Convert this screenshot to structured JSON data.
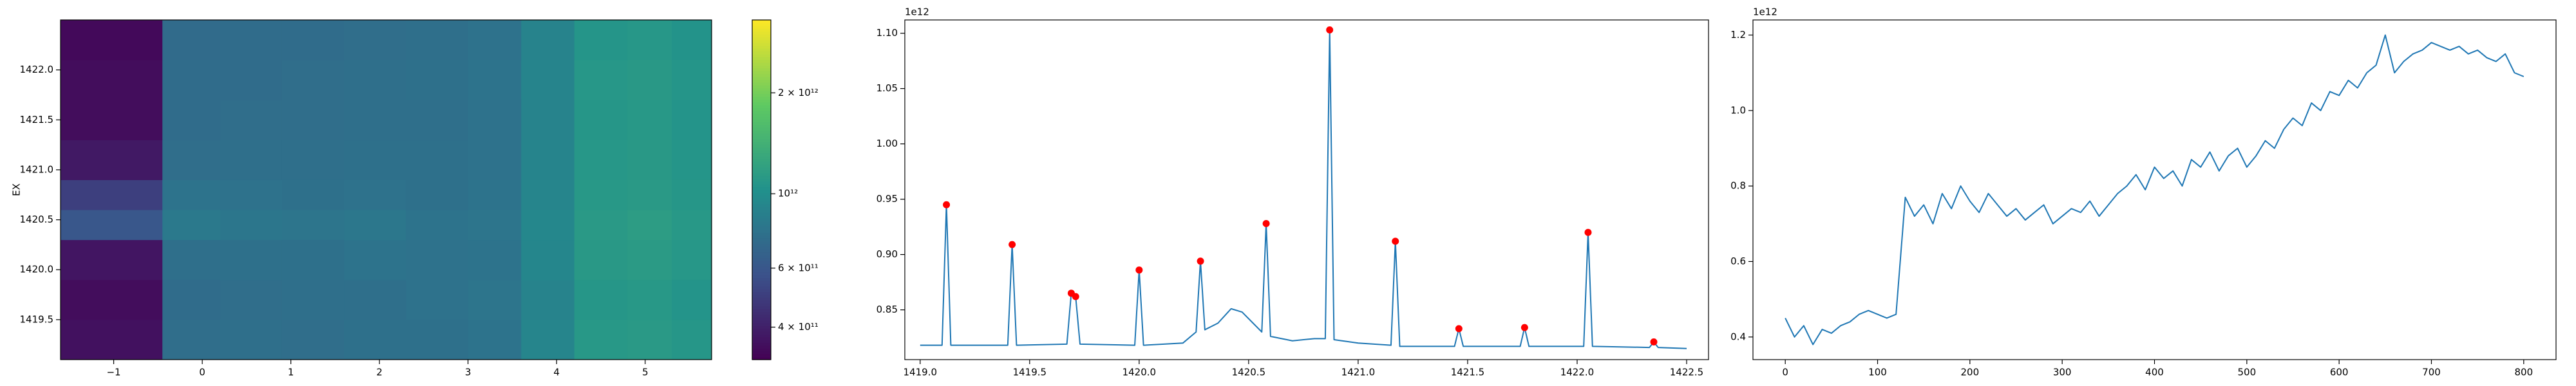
{
  "chart_data": [
    {
      "type": "heatmap",
      "y_label": "EX",
      "x_edges": [
        -1.6,
        -0.45,
        0.2,
        0.9,
        1.6,
        2.3,
        3.0,
        3.6,
        4.2,
        4.8,
        5.3,
        5.75
      ],
      "y_edges": [
        1419.1,
        1419.5,
        1419.9,
        1420.3,
        1420.6,
        1420.9,
        1421.3,
        1421.7,
        1422.1,
        1422.5
      ],
      "z": [
        [
          360000000000.0,
          740000000000.0,
          750000000000.0,
          740000000000.0,
          760000000000.0,
          760000000000.0,
          780000000000.0,
          920000000000.0,
          1100000000000.0,
          1120000000000.0,
          1080000000000.0
        ],
        [
          350000000000.0,
          730000000000.0,
          740000000000.0,
          750000000000.0,
          750000000000.0,
          770000000000.0,
          790000000000.0,
          900000000000.0,
          1080000000000.0,
          1100000000000.0,
          1060000000000.0
        ],
        [
          370000000000.0,
          750000000000.0,
          760000000000.0,
          760000000000.0,
          780000000000.0,
          770000000000.0,
          780000000000.0,
          930000000000.0,
          1110000000000.0,
          1130000000000.0,
          1090000000000.0
        ],
        [
          600000000000.0,
          820000000000.0,
          800000000000.0,
          790000000000.0,
          810000000000.0,
          780000000000.0,
          790000000000.0,
          940000000000.0,
          1120000000000.0,
          1150000000000.0,
          1100000000000.0
        ],
        [
          500000000000.0,
          780000000000.0,
          770000000000.0,
          760000000000.0,
          770000000000.0,
          760000000000.0,
          780000000000.0,
          920000000000.0,
          1100000000000.0,
          1120000000000.0,
          1080000000000.0
        ],
        [
          380000000000.0,
          740000000000.0,
          750000000000.0,
          750000000000.0,
          760000000000.0,
          760000000000.0,
          770000000000.0,
          910000000000.0,
          1090000000000.0,
          1110000000000.0,
          1070000000000.0
        ],
        [
          350000000000.0,
          730000000000.0,
          740000000000.0,
          740000000000.0,
          750000000000.0,
          750000000000.0,
          770000000000.0,
          900000000000.0,
          1080000000000.0,
          1100000000000.0,
          1060000000000.0
        ],
        [
          350000000000.0,
          730000000000.0,
          730000000000.0,
          740000000000.0,
          750000000000.0,
          760000000000.0,
          780000000000.0,
          910000000000.0,
          1090000000000.0,
          1110000000000.0,
          1070000000000.0
        ],
        [
          340000000000.0,
          720000000000.0,
          730000000000.0,
          730000000000.0,
          740000000000.0,
          750000000000.0,
          770000000000.0,
          900000000000.0,
          1070000000000.0,
          1090000000000.0,
          1050000000000.0
        ]
      ],
      "xlim": [
        -1.6,
        5.75
      ],
      "xticks": [
        {
          "value": -1,
          "label": "−1"
        },
        0,
        1,
        2,
        3,
        4,
        5
      ],
      "ylim": [
        1419.1,
        1422.5
      ],
      "yticks": [
        1419.5,
        {
          "value": 1420,
          "label": "1420.0"
        },
        1420.5,
        {
          "value": 1421,
          "label": "1421.0"
        },
        1421.5,
        {
          "value": 1422,
          "label": "1422.0"
        }
      ],
      "colorbar": {
        "log": true,
        "lim": [
          320000000000.0,
          3300000000000.0
        ],
        "ticks": [
          {
            "value": 400000000000.0,
            "label": "4 × 10¹¹"
          },
          {
            "value": 600000000000.0,
            "label": "6 × 10¹¹"
          },
          {
            "value": 1000000000000.0,
            "label": "10¹²"
          },
          {
            "value": 2000000000000.0,
            "label": "2 × 10¹²"
          }
        ]
      }
    },
    {
      "type": "line",
      "offset_label": "1e12",
      "x": [
        1419.0,
        1419.1,
        1419.12,
        1419.14,
        1419.4,
        1419.42,
        1419.44,
        1419.67,
        1419.69,
        1419.71,
        1419.73,
        1419.98,
        1420.0,
        1420.02,
        1420.2,
        1420.26,
        1420.28,
        1420.3,
        1420.36,
        1420.42,
        1420.47,
        1420.52,
        1420.56,
        1420.58,
        1420.6,
        1420.7,
        1420.8,
        1420.85,
        1420.87,
        1420.89,
        1421.0,
        1421.15,
        1421.17,
        1421.19,
        1421.44,
        1421.46,
        1421.48,
        1421.74,
        1421.76,
        1421.78,
        1422.03,
        1422.05,
        1422.07,
        1422.33,
        1422.35,
        1422.37,
        1422.5
      ],
      "series": [
        {
          "color": "#1f77b4",
          "values": [
            0.818,
            0.818,
            0.945,
            0.818,
            0.818,
            0.909,
            0.818,
            0.819,
            0.865,
            0.862,
            0.819,
            0.818,
            0.886,
            0.818,
            0.82,
            0.83,
            0.894,
            0.832,
            0.838,
            0.851,
            0.848,
            0.838,
            0.83,
            0.928,
            0.826,
            0.822,
            0.824,
            0.824,
            1.103,
            0.823,
            0.82,
            0.818,
            0.912,
            0.817,
            0.817,
            0.833,
            0.817,
            0.817,
            0.834,
            0.817,
            0.817,
            0.92,
            0.817,
            0.816,
            0.821,
            0.816,
            0.815
          ]
        }
      ],
      "peaks": {
        "color": "#ff0000",
        "x": [
          1419.12,
          1419.42,
          1419.69,
          1419.71,
          1420.0,
          1420.28,
          1420.58,
          1420.87,
          1421.17,
          1421.46,
          1421.76,
          1422.05,
          1422.35
        ],
        "values": [
          0.945,
          0.909,
          0.865,
          0.862,
          0.886,
          0.894,
          0.928,
          1.103,
          0.912,
          0.833,
          0.834,
          0.92,
          0.821
        ]
      },
      "xlim": [
        1418.93,
        1422.6
      ],
      "xticks": [
        {
          "value": 1419,
          "label": "1419.0"
        },
        1419.5,
        {
          "value": 1420,
          "label": "1420.0"
        },
        1420.5,
        {
          "value": 1421,
          "label": "1421.0"
        },
        1421.5,
        {
          "value": 1422,
          "label": "1422.0"
        },
        1422.5
      ],
      "ylim": [
        0.805,
        1.112
      ],
      "yticks": [
        0.85,
        {
          "value": 0.9,
          "label": "0.90"
        },
        0.95,
        {
          "value": 1,
          "label": "1.00"
        },
        1.05,
        {
          "value": 1.1,
          "label": "1.10"
        }
      ]
    },
    {
      "type": "line",
      "offset_label": "1e12",
      "x": [
        0,
        10,
        20,
        30,
        40,
        50,
        60,
        70,
        80,
        90,
        100,
        110,
        120,
        130,
        140,
        150,
        160,
        170,
        180,
        190,
        200,
        210,
        220,
        230,
        240,
        250,
        260,
        270,
        280,
        290,
        300,
        310,
        320,
        330,
        340,
        350,
        360,
        370,
        380,
        390,
        400,
        410,
        420,
        430,
        440,
        450,
        460,
        470,
        480,
        490,
        500,
        510,
        520,
        530,
        540,
        550,
        560,
        570,
        580,
        590,
        600,
        610,
        620,
        630,
        640,
        650,
        660,
        670,
        680,
        690,
        700,
        710,
        720,
        730,
        740,
        750,
        760,
        770,
        780,
        790,
        800
      ],
      "series": [
        {
          "color": "#1f77b4",
          "values": [
            0.45,
            0.4,
            0.43,
            0.38,
            0.42,
            0.41,
            0.43,
            0.44,
            0.46,
            0.47,
            0.46,
            0.45,
            0.46,
            0.77,
            0.72,
            0.75,
            0.7,
            0.78,
            0.74,
            0.8,
            0.76,
            0.73,
            0.78,
            0.75,
            0.72,
            0.74,
            0.71,
            0.73,
            0.75,
            0.7,
            0.72,
            0.74,
            0.73,
            0.76,
            0.72,
            0.75,
            0.78,
            0.8,
            0.83,
            0.79,
            0.85,
            0.82,
            0.84,
            0.8,
            0.87,
            0.85,
            0.89,
            0.84,
            0.88,
            0.9,
            0.85,
            0.88,
            0.92,
            0.9,
            0.95,
            0.98,
            0.96,
            1.02,
            1.0,
            1.05,
            1.04,
            1.08,
            1.06,
            1.1,
            1.12,
            1.2,
            1.1,
            1.13,
            1.15,
            1.16,
            1.18,
            1.17,
            1.16,
            1.17,
            1.15,
            1.16,
            1.14,
            1.13,
            1.15,
            1.1,
            1.09
          ]
        }
      ],
      "xlim": [
        -35,
        835
      ],
      "xticks": [
        0,
        100,
        200,
        300,
        400,
        500,
        600,
        700,
        800
      ],
      "ylim": [
        0.34,
        1.24
      ],
      "yticks": [
        0.4,
        0.6,
        0.8,
        {
          "value": 1,
          "label": "1.0"
        },
        1.2
      ]
    }
  ]
}
